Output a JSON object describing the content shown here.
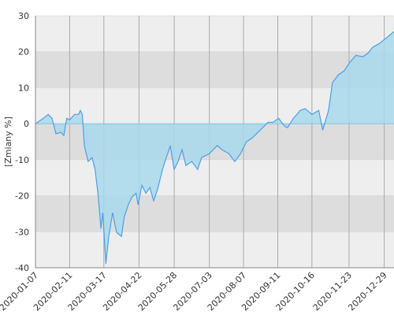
{
  "chart_data": {
    "type": "area",
    "y_label": "[Zmiany %]",
    "x": [
      "2020-01-07",
      "2020-01-15",
      "2020-01-20",
      "2020-01-24",
      "2020-01-28",
      "2020-02-02",
      "2020-02-05",
      "2020-02-08",
      "2020-02-11",
      "2020-02-16",
      "2020-02-20",
      "2020-02-22",
      "2020-02-24",
      "2020-02-26",
      "2020-03-01",
      "2020-03-05",
      "2020-03-08",
      "2020-03-11",
      "2020-03-14",
      "2020-03-16",
      "2020-03-19",
      "2020-03-22",
      "2020-03-26",
      "2020-03-30",
      "2020-04-04",
      "2020-04-07",
      "2020-04-11",
      "2020-04-15",
      "2020-04-19",
      "2020-04-21",
      "2020-04-25",
      "2020-04-29",
      "2020-05-03",
      "2020-05-07",
      "2020-05-11",
      "2020-05-16",
      "2020-05-20",
      "2020-05-24",
      "2020-05-28",
      "2020-06-01",
      "2020-06-05",
      "2020-06-09",
      "2020-06-15",
      "2020-06-21",
      "2020-06-25",
      "2020-07-03",
      "2020-07-11",
      "2020-07-16",
      "2020-07-23",
      "2020-07-29",
      "2020-08-04",
      "2020-08-10",
      "2020-08-16",
      "2020-08-24",
      "2020-09-01",
      "2020-09-06",
      "2020-09-12",
      "2020-09-18",
      "2020-09-21",
      "2020-09-27",
      "2020-10-04",
      "2020-10-09",
      "2020-10-16",
      "2020-10-23",
      "2020-10-27",
      "2020-11-02",
      "2020-11-06",
      "2020-11-12",
      "2020-11-18",
      "2020-11-23",
      "2020-11-30",
      "2020-12-07",
      "2020-12-12",
      "2020-12-17",
      "2020-12-24",
      "2020-12-31",
      "2021-01-08"
    ],
    "values": [
      0,
      1.5,
      2.6,
      1.5,
      -2.8,
      -2.4,
      -3.3,
      1.5,
      1.1,
      2.6,
      2.6,
      3.7,
      2.6,
      -6.1,
      -10.5,
      -9.4,
      -12.7,
      -19.3,
      -29.1,
      -24.7,
      -38.9,
      -31.3,
      -24.7,
      -30.2,
      -31.3,
      -25.8,
      -22.5,
      -20.3,
      -19.3,
      -22.5,
      -17.1,
      -19.3,
      -17.7,
      -21.4,
      -18.2,
      -12.7,
      -9.4,
      -6.1,
      -12.7,
      -10.5,
      -7.2,
      -11.6,
      -10.5,
      -12.7,
      -9.4,
      -8.3,
      -6.1,
      -7.2,
      -8.3,
      -10.5,
      -8.3,
      -5,
      -3.9,
      -1.8,
      0.4,
      0.4,
      1.5,
      -0.7,
      -1.1,
      1.5,
      3.7,
      4.2,
      2.6,
      3.7,
      -1.8,
      3.7,
      11.4,
      13.6,
      14.7,
      16.8,
      19,
      18.6,
      19.5,
      21.2,
      22.3,
      23.8,
      25.6
    ],
    "line_color": "#4d9fe8",
    "fill_color": "#a8d8ec",
    "xlim": [
      "2020-01-07",
      "2021-01-08"
    ],
    "xticks": [
      "2020-01-07",
      "2020-02-11",
      "2020-03-17",
      "2020-04-22",
      "2020-05-28",
      "2020-07-03",
      "2020-08-07",
      "2020-09-11",
      "2020-10-16",
      "2020-11-23",
      "2020-12-29"
    ],
    "ylim": [
      -40,
      30
    ],
    "yticks": [
      -40,
      -30,
      -20,
      -10,
      0,
      10,
      20,
      30
    ],
    "grid": true
  }
}
